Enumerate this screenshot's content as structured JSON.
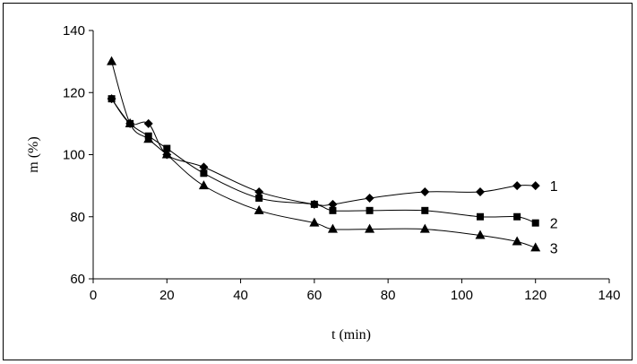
{
  "chart_data": {
    "type": "line",
    "title": "",
    "xlabel": "t (min)",
    "ylabel": "m (%)",
    "xlim": [
      0,
      140
    ],
    "ylim": [
      60,
      140
    ],
    "xticks": [
      0,
      20,
      40,
      60,
      80,
      100,
      120,
      140
    ],
    "yticks": [
      60,
      80,
      100,
      120,
      140
    ],
    "grid": false,
    "series": [
      {
        "name": "1",
        "marker": "diamond",
        "x": [
          5,
          10,
          15,
          20,
          30,
          45,
          60,
          65,
          75,
          90,
          105,
          115,
          120
        ],
        "y": [
          118,
          110,
          110,
          100,
          96,
          88,
          84,
          84,
          86,
          88,
          88,
          90,
          90
        ]
      },
      {
        "name": "2",
        "marker": "square",
        "x": [
          5,
          10,
          15,
          20,
          30,
          45,
          60,
          65,
          75,
          90,
          105,
          115,
          120
        ],
        "y": [
          118,
          110,
          106,
          102,
          94,
          86,
          84,
          82,
          82,
          82,
          80,
          80,
          78
        ]
      },
      {
        "name": "3",
        "marker": "triangle",
        "x": [
          5,
          10,
          15,
          20,
          30,
          45,
          60,
          65,
          75,
          90,
          105,
          115,
          120
        ],
        "y": [
          130,
          110,
          105,
          100,
          90,
          82,
          78,
          76,
          76,
          76,
          74,
          72,
          70
        ]
      }
    ]
  }
}
